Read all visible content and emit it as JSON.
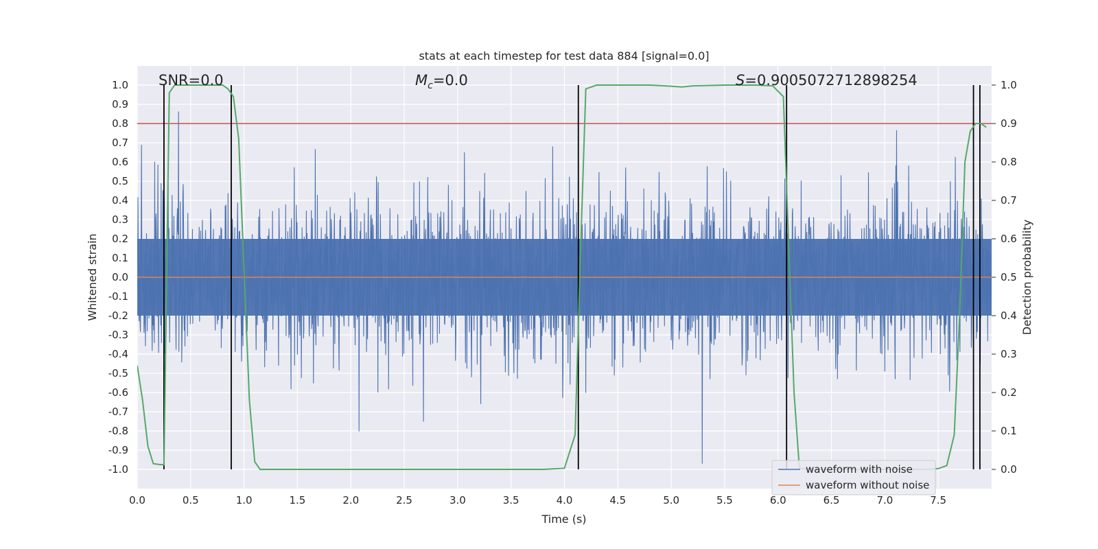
{
  "chart_data": {
    "type": "line",
    "title": "stats at each timestep for test data 884 [signal=0.0]",
    "xlabel": "Time (s)",
    "ylabel": "Whitened strain",
    "y2label": "Detection probability",
    "xlim": [
      0.0,
      8.0
    ],
    "ylim": [
      -1.1,
      1.1
    ],
    "y2lim": [
      -0.05,
      1.05
    ],
    "x_ticks": [
      "0.0",
      "0.5",
      "1.0",
      "1.5",
      "2.0",
      "2.5",
      "3.0",
      "3.5",
      "4.0",
      "4.5",
      "5.0",
      "5.5",
      "6.0",
      "6.5",
      "7.0",
      "7.5"
    ],
    "y_ticks": [
      "1.0",
      "0.9",
      "0.8",
      "0.7",
      "0.6",
      "0.5",
      "0.4",
      "0.3",
      "0.2",
      "0.1",
      "0.0",
      "-0.1",
      "-0.2",
      "-0.3",
      "-0.4",
      "-0.5",
      "-0.6",
      "-0.7",
      "-0.8",
      "-0.9",
      "-1.0"
    ],
    "y2_ticks": [
      "1.0",
      "0.9",
      "0.8",
      "0.7",
      "0.6",
      "0.5",
      "0.4",
      "0.3",
      "0.2",
      "0.1",
      "0.0"
    ],
    "grid": true,
    "annotations": {
      "snr": "SNR=0.0",
      "mc_symbol": "M",
      "mc_sub": "c",
      "mc_value": "=0.0",
      "s_symbol": "S",
      "s_value": "=0.9005072712898254"
    },
    "threshold": 0.9,
    "vertical_lines_x": [
      0.25,
      0.88,
      4.13,
      6.08,
      7.83,
      7.89
    ],
    "series": [
      {
        "name": "waveform with noise",
        "color": "#4c72b0",
        "style": "dense noise trace, approx. range -0.97 to 0.94"
      },
      {
        "name": "waveform without noise",
        "color": "#dd8452",
        "values_constant": 0.0
      }
    ],
    "detection_probability": {
      "color": "#55a868",
      "x": [
        0.0,
        0.05,
        0.1,
        0.15,
        0.2,
        0.25,
        0.3,
        0.35,
        0.4,
        0.5,
        0.6,
        0.7,
        0.8,
        0.85,
        0.9,
        0.95,
        1.0,
        1.05,
        1.1,
        1.15,
        1.3,
        2.0,
        3.0,
        3.8,
        4.0,
        4.1,
        4.15,
        4.2,
        4.3,
        4.5,
        4.8,
        5.0,
        5.1,
        5.2,
        5.5,
        5.8,
        5.95,
        6.05,
        6.1,
        6.15,
        6.2,
        6.3,
        6.5,
        7.0,
        7.4,
        7.5,
        7.58,
        7.65,
        7.7,
        7.75,
        7.8,
        7.85,
        7.9,
        7.95
      ],
      "y": [
        0.27,
        0.18,
        0.06,
        0.015,
        0.013,
        0.012,
        0.98,
        1.0,
        1.0,
        1.0,
        1.0,
        1.0,
        1.0,
        0.99,
        0.97,
        0.86,
        0.52,
        0.18,
        0.02,
        0.0,
        0.0,
        0.0,
        0.0,
        0.0,
        0.003,
        0.09,
        0.56,
        0.99,
        1.0,
        1.0,
        1.0,
        0.997,
        0.995,
        0.998,
        1.0,
        1.0,
        0.998,
        0.97,
        0.58,
        0.2,
        0.003,
        0.0,
        0.0,
        0.0,
        0.0,
        0.002,
        0.01,
        0.09,
        0.4,
        0.8,
        0.88,
        0.9,
        0.9,
        0.89
      ]
    },
    "legend_position": "lower right"
  }
}
